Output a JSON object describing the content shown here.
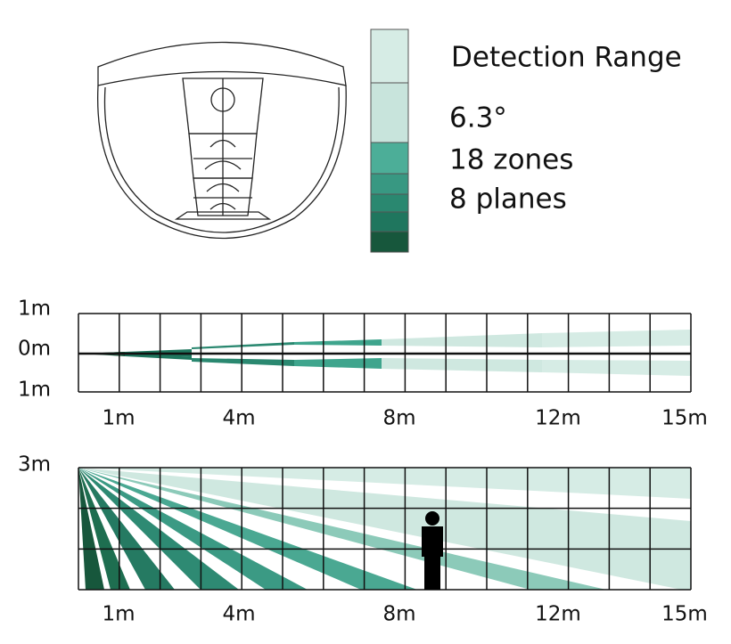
{
  "legend": {
    "title": "Detection Range",
    "angle": "6.3°",
    "zones": "18 zones",
    "planes": "8 planes"
  },
  "top_view": {
    "y_labels": [
      "1m",
      "0m",
      "1m"
    ],
    "x_labels": [
      "1m",
      "4m",
      "8m",
      "12m",
      "15m"
    ]
  },
  "side_view": {
    "y_label": "3m",
    "x_labels": [
      "1m",
      "4m",
      "8m",
      "12m",
      "15m"
    ]
  }
}
